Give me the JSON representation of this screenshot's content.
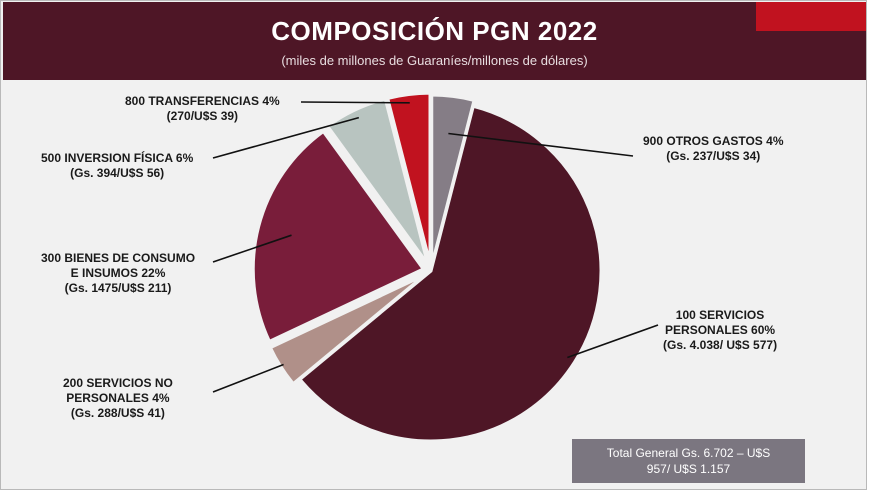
{
  "header": {
    "title": "COMPOSICIÓN PGN 2022",
    "subtitle": "(miles de millones de Guaraníes/millones de dólares)"
  },
  "chart_data": {
    "type": "pie",
    "slices": [
      {
        "label_line1": "900 OTROS GASTOS 4%",
        "label_line2": "(Gs. 237/U$S 34)",
        "value": 4,
        "color": "#857d86"
      },
      {
        "label_line1": "100 SERVICIOS",
        "label_line2": "PERSONALES 60%",
        "label_line3": "(Gs. 4.038/ U$S 577)",
        "value": 60,
        "color": "#4e1626"
      },
      {
        "label_line1": "200 SERVICIOS NO",
        "label_line2": "PERSONALES 4%",
        "label_line3": "(Gs. 288/U$S 41)",
        "value": 4,
        "color": "#b09089"
      },
      {
        "label_line1": "300 BIENES DE CONSUMO",
        "label_line2": "E INSUMOS 22%",
        "label_line3": "(Gs. 1475/U$S 211)",
        "value": 22,
        "color": "#791d3a"
      },
      {
        "label_line1": "500 INVERSION FÍSICA 6%",
        "label_line2": "(Gs. 394/U$S 56)",
        "value": 6,
        "color": "#b8c4c0"
      },
      {
        "label_line1": "800 TRANSFERENCIAS 4%",
        "label_line2": "(270/U$S 39)",
        "value": 4,
        "color": "#c1121f"
      }
    ]
  },
  "total": {
    "line1": "Total General Gs. 6.702 – U$S",
    "line2": "957/ U$S 1.157"
  }
}
